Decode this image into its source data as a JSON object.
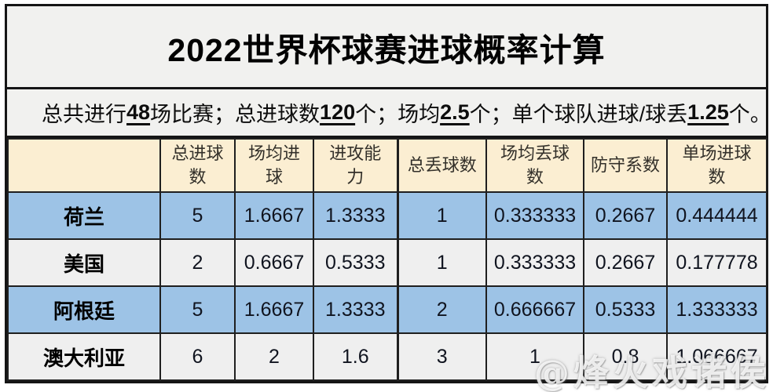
{
  "title": "2022世界杯球赛进球概率计算",
  "subtitle": {
    "segments": [
      {
        "text": "总共进行",
        "emph": false
      },
      {
        "text": "48",
        "emph": true
      },
      {
        "text": "场比赛；总进球数",
        "emph": false
      },
      {
        "text": "120",
        "emph": true
      },
      {
        "text": "个；场均",
        "emph": false
      },
      {
        "text": "2.5",
        "emph": true
      },
      {
        "text": "个；单个球队进球/球丢",
        "emph": false
      },
      {
        "text": "1.25",
        "emph": true
      },
      {
        "text": "个。",
        "emph": false
      }
    ]
  },
  "table": {
    "columns": [
      "",
      "总进球\n数",
      "场均进\n球",
      "进攻能\n力",
      "总丢球数",
      "场均丢球\n数",
      "防守系数",
      "单场进球\n数"
    ],
    "rows": [
      {
        "team": "荷兰",
        "values": [
          "5",
          "1.6667",
          "1.3333",
          "1",
          "0.333333",
          "0.2667",
          "0.444444"
        ]
      },
      {
        "team": "美国",
        "values": [
          "2",
          "0.6667",
          "0.5333",
          "1",
          "0.333333",
          "0.2667",
          "0.177778"
        ]
      },
      {
        "team": "阿根廷",
        "values": [
          "5",
          "1.6667",
          "1.3333",
          "2",
          "0.666667",
          "0.5333",
          "1.333333"
        ]
      },
      {
        "team": "澳大利亚",
        "values": [
          "6",
          "2",
          "1.6",
          "3",
          "1",
          "0.8",
          "1.066667"
        ]
      }
    ]
  },
  "watermark": "@烽火戏诸侯",
  "colors": {
    "row_blue": "#9DC3E6",
    "row_gray": "#EFEFEF",
    "header_cream": "#FBEED2",
    "panel_gray": "#F1F1EF",
    "border": "#1F1F1F"
  }
}
